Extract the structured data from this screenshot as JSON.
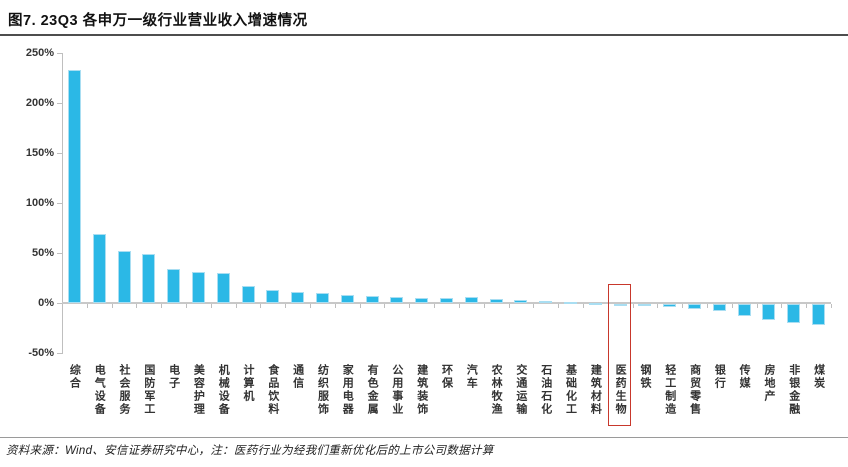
{
  "figure": {
    "title": "图7. 23Q3 各申万一级行业营业收入增速情况",
    "source_note": "资料来源：Wind、安信证券研究中心，注：医药行业为经我们重新优化后的上市公司数据计算"
  },
  "chart_data": {
    "type": "bar",
    "title": "23Q3 各申万一级行业营业收入增速情况",
    "unit": "%",
    "categories": [
      "综合",
      "电气设备",
      "社会服务",
      "国防军工",
      "电子",
      "美容护理",
      "机械设备",
      "计算机",
      "食品饮料",
      "通信",
      "纺织服饰",
      "家用电器",
      "有色金属",
      "公用事业",
      "建筑装饰",
      "环保",
      "汽车",
      "农林牧渔",
      "交通运输",
      "石油石化",
      "基础化工",
      "建筑材料",
      "医药生物",
      "钢铁",
      "轻工制造",
      "商贸零售",
      "银行",
      "传媒",
      "房地产",
      "非银金融",
      "煤炭"
    ],
    "values": [
      233,
      69,
      52,
      49,
      34,
      31,
      30,
      17,
      13,
      11.5,
      10.5,
      8,
      7,
      6,
      5.5,
      5,
      6,
      4,
      3.5,
      2,
      1.5,
      0.5,
      -0.5,
      -2,
      -3,
      -4.5,
      -7,
      -12,
      -16,
      -19,
      -21
    ],
    "ylim": [
      -50,
      250
    ],
    "yticks": [
      "250%",
      "200%",
      "150%",
      "100%",
      "50%",
      "0%",
      "-50%"
    ],
    "ytick_values": [
      250,
      200,
      150,
      100,
      50,
      0,
      -50
    ],
    "grid": false,
    "legend": "none",
    "bar_color": "#2bb8e6",
    "bar_edge_color": "#a9def2",
    "axis_color": "#bfbfbf",
    "highlight": {
      "category": "医药生物",
      "index": 22,
      "box_color": "#c8382c"
    }
  }
}
